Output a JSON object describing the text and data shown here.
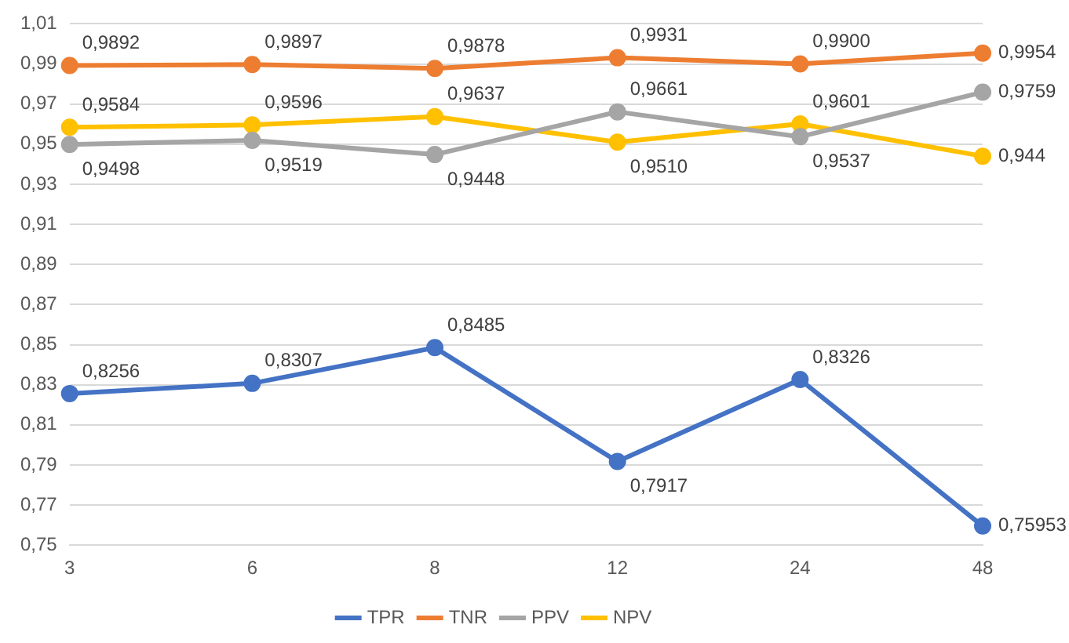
{
  "chart_data": {
    "type": "line",
    "categories": [
      "3",
      "6",
      "8",
      "12",
      "24",
      "48"
    ],
    "series": [
      {
        "name": "TPR",
        "color": "#4472c4",
        "values": [
          0.8256,
          0.8307,
          0.8485,
          0.7917,
          0.8326,
          0.75953
        ],
        "value_labels": [
          "0,8256",
          "0,8307",
          "0,8485",
          "0,7917",
          "0,8326",
          "0,75953"
        ]
      },
      {
        "name": "TNR",
        "color": "#ed7d31",
        "values": [
          0.9892,
          0.9897,
          0.9878,
          0.9931,
          0.99,
          0.9954
        ],
        "value_labels": [
          "0,9892",
          "0,9897",
          "0,9878",
          "0,9931",
          "0,9900",
          "0,9954"
        ]
      },
      {
        "name": "PPV",
        "color": "#a5a5a5",
        "values": [
          0.9498,
          0.9519,
          0.9448,
          0.9661,
          0.9537,
          0.9759
        ],
        "value_labels": [
          "0,9498",
          "0,9519",
          "0,9448",
          "0,9661",
          "0,9537",
          "0,9759"
        ]
      },
      {
        "name": "NPV",
        "color": "#ffc000",
        "values": [
          0.9584,
          0.9596,
          0.9637,
          0.951,
          0.9601,
          0.944
        ],
        "value_labels": [
          "0,9584",
          "0,9596",
          "0,9637",
          "0,9510",
          "0,9601",
          "0,944"
        ]
      }
    ],
    "ylim": [
      0.75,
      1.01
    ],
    "yticks": [
      {
        "value": 0.75,
        "label": "0,75"
      },
      {
        "value": 0.77,
        "label": "0,77"
      },
      {
        "value": 0.79,
        "label": "0,79"
      },
      {
        "value": 0.81,
        "label": "0,81"
      },
      {
        "value": 0.83,
        "label": "0,83"
      },
      {
        "value": 0.85,
        "label": "0,85"
      },
      {
        "value": 0.87,
        "label": "0,87"
      },
      {
        "value": 0.89,
        "label": "0,89"
      },
      {
        "value": 0.91,
        "label": "0,91"
      },
      {
        "value": 0.93,
        "label": "0,93"
      },
      {
        "value": 0.95,
        "label": "0,95"
      },
      {
        "value": 0.97,
        "label": "0,97"
      },
      {
        "value": 0.99,
        "label": "0,99"
      },
      {
        "value": 1.01,
        "label": "1,01"
      }
    ],
    "grid": "y",
    "legend": "bottom",
    "marker": "circle",
    "line_style": "solid"
  }
}
